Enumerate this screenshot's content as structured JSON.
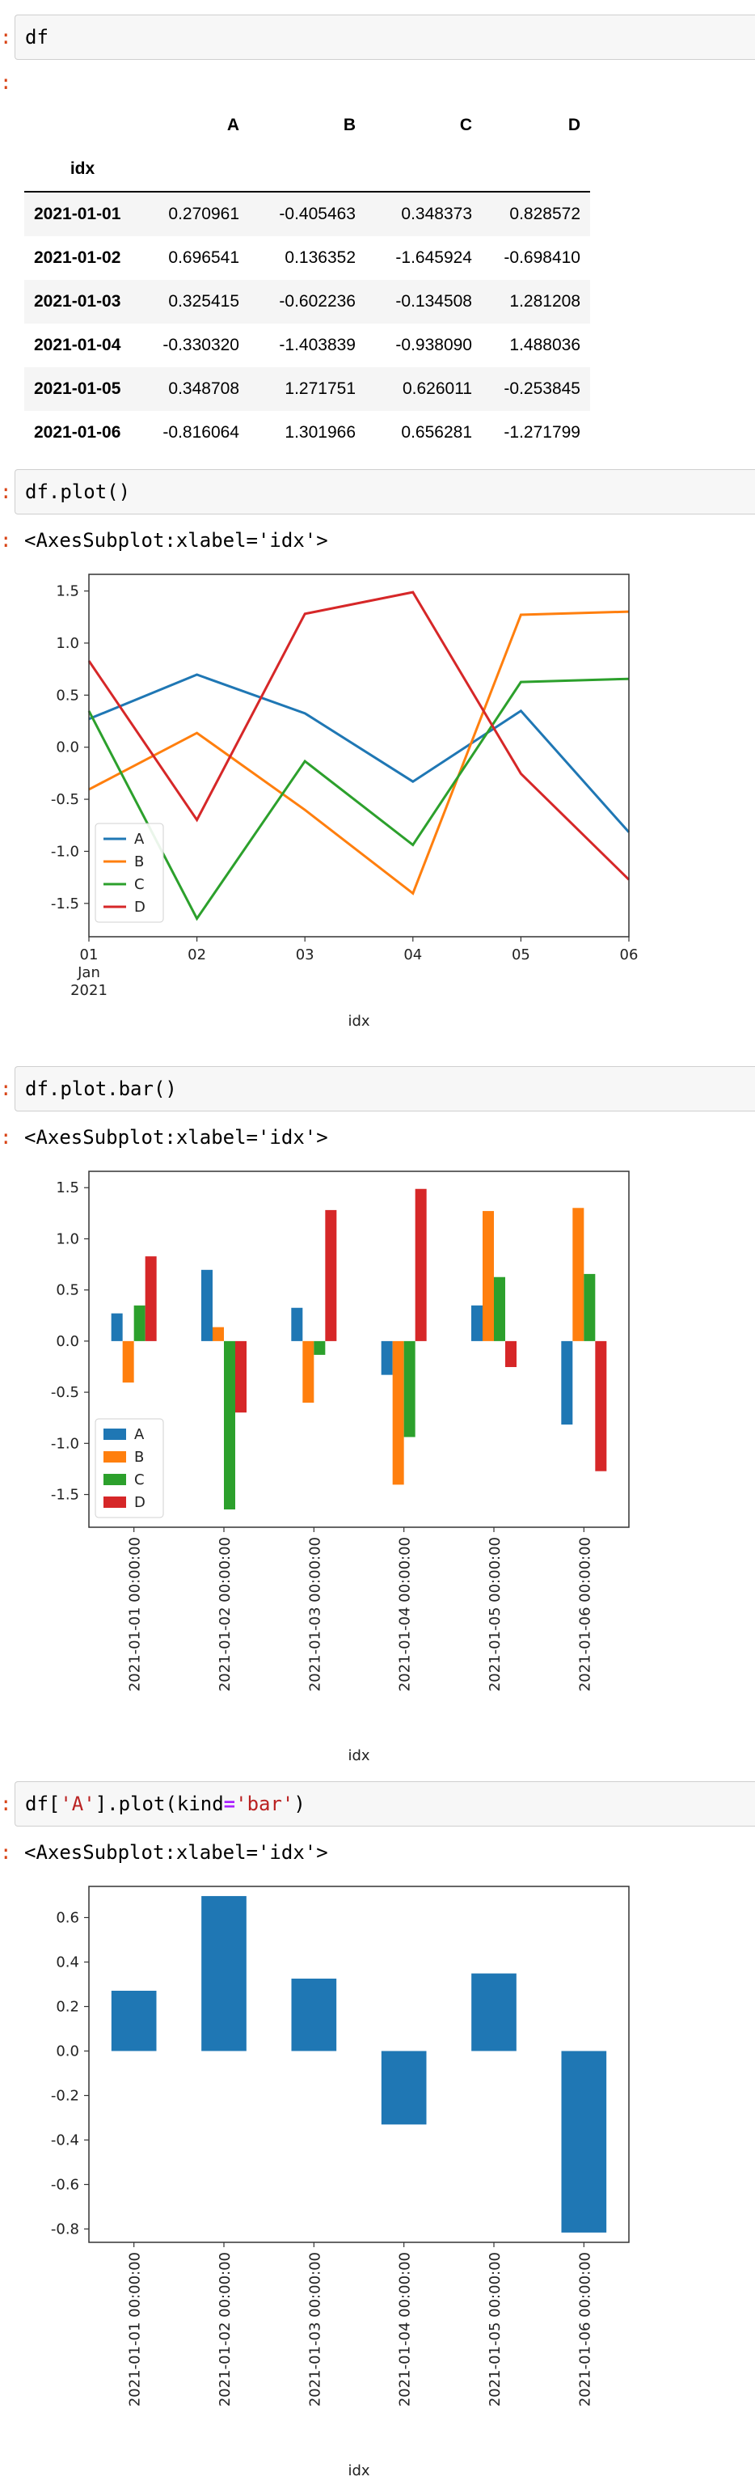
{
  "cells": [
    {
      "prompt": ":",
      "code": "df",
      "out_prompt": ":"
    },
    {
      "prompt": ":",
      "code": "df.plot()",
      "out_prompt": ":",
      "output_text": "<AxesSubplot:xlabel='idx'>"
    },
    {
      "prompt": ":",
      "code": "df.plot.bar()",
      "out_prompt": ":",
      "output_text": "<AxesSubplot:xlabel='idx'>"
    },
    {
      "prompt": ":",
      "code_parts": [
        "df[",
        "'A'",
        "].plot(kind",
        "=",
        "'bar'",
        ")"
      ],
      "out_prompt": ":",
      "output_text": "<AxesSubplot:xlabel='idx'>"
    }
  ],
  "dataframe": {
    "index_name": "idx",
    "columns": [
      "A",
      "B",
      "C",
      "D"
    ],
    "rows": [
      {
        "idx": "2021-01-01",
        "values": [
          "0.270961",
          "-0.405463",
          "0.348373",
          "0.828572"
        ]
      },
      {
        "idx": "2021-01-02",
        "values": [
          "0.696541",
          "0.136352",
          "-1.645924",
          "-0.698410"
        ]
      },
      {
        "idx": "2021-01-03",
        "values": [
          "0.325415",
          "-0.602236",
          "-0.134508",
          "1.281208"
        ]
      },
      {
        "idx": "2021-01-04",
        "values": [
          "-0.330320",
          "-1.403839",
          "-0.938090",
          "1.488036"
        ]
      },
      {
        "idx": "2021-01-05",
        "values": [
          "0.348708",
          "1.271751",
          "0.626011",
          "-0.253845"
        ]
      },
      {
        "idx": "2021-01-06",
        "values": [
          "-0.816064",
          "1.301966",
          "0.656281",
          "-1.271799"
        ]
      }
    ]
  },
  "colors": {
    "A": "#1f77b4",
    "B": "#ff7f0e",
    "C": "#2ca02c",
    "D": "#d62728"
  },
  "chart_data": [
    {
      "type": "line",
      "x": [
        "2021-01-01",
        "2021-01-02",
        "2021-01-03",
        "2021-01-04",
        "2021-01-05",
        "2021-01-06"
      ],
      "xtick_labels": [
        "01",
        "02",
        "03",
        "04",
        "05",
        "06"
      ],
      "xtick_sublabels": [
        "Jan",
        "2021"
      ],
      "series": [
        {
          "name": "A",
          "values": [
            0.270961,
            0.696541,
            0.325415,
            -0.33032,
            0.348708,
            -0.816064
          ]
        },
        {
          "name": "B",
          "values": [
            -0.405463,
            0.136352,
            -0.602236,
            -1.403839,
            1.271751,
            1.301966
          ]
        },
        {
          "name": "C",
          "values": [
            0.348373,
            -1.645924,
            -0.134508,
            -0.93809,
            0.626011,
            0.656281
          ]
        },
        {
          "name": "D",
          "values": [
            0.828572,
            -0.69841,
            1.281208,
            1.488036,
            -0.253845,
            -1.271799
          ]
        }
      ],
      "xlabel": "idx",
      "ylim": [
        -1.82,
        1.66
      ],
      "yticks": [
        "1.5",
        "1.0",
        "0.5",
        "0.0",
        "-0.5",
        "-1.0",
        "-1.5"
      ],
      "legend": "lower-left"
    },
    {
      "type": "bar",
      "categories": [
        "2021-01-01 00:00:00",
        "2021-01-02 00:00:00",
        "2021-01-03 00:00:00",
        "2021-01-04 00:00:00",
        "2021-01-05 00:00:00",
        "2021-01-06 00:00:00"
      ],
      "series": [
        {
          "name": "A",
          "values": [
            0.270961,
            0.696541,
            0.325415,
            -0.33032,
            0.348708,
            -0.816064
          ]
        },
        {
          "name": "B",
          "values": [
            -0.405463,
            0.136352,
            -0.602236,
            -1.403839,
            1.271751,
            1.301966
          ]
        },
        {
          "name": "C",
          "values": [
            0.348373,
            -1.645924,
            -0.134508,
            -0.93809,
            0.626011,
            0.656281
          ]
        },
        {
          "name": "D",
          "values": [
            0.828572,
            -0.69841,
            1.281208,
            1.488036,
            -0.253845,
            -1.271799
          ]
        }
      ],
      "xlabel": "idx",
      "ylim": [
        -1.82,
        1.66
      ],
      "yticks": [
        "1.5",
        "1.0",
        "0.5",
        "0.0",
        "-0.5",
        "-1.0",
        "-1.5"
      ],
      "legend": "lower-left"
    },
    {
      "type": "bar",
      "categories": [
        "2021-01-01 00:00:00",
        "2021-01-02 00:00:00",
        "2021-01-03 00:00:00",
        "2021-01-04 00:00:00",
        "2021-01-05 00:00:00",
        "2021-01-06 00:00:00"
      ],
      "values": [
        0.270961,
        0.696541,
        0.325415,
        -0.33032,
        0.348708,
        -0.816064
      ],
      "xlabel": "idx",
      "ylim": [
        -0.86,
        0.74
      ],
      "yticks": [
        "0.6",
        "0.4",
        "0.2",
        "0.0",
        "-0.2",
        "-0.4",
        "-0.6",
        "-0.8"
      ]
    }
  ]
}
